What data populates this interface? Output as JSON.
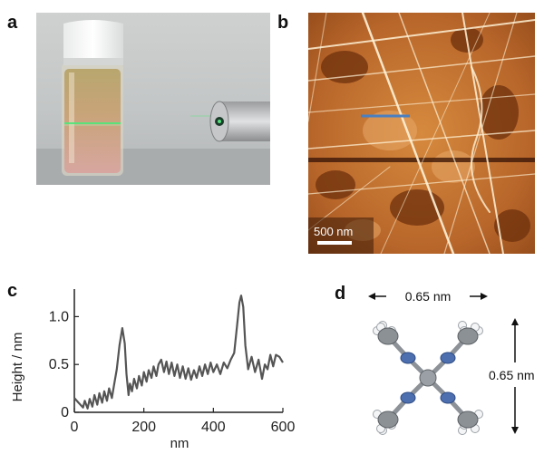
{
  "panels": {
    "a": {
      "letter": "a"
    },
    "b": {
      "letter": "b",
      "scalebar_label": "500 nm",
      "line_color": "#4a7fc0"
    },
    "c": {
      "letter": "c"
    },
    "d": {
      "letter": "d",
      "width_label": "0.65 nm",
      "height_label": "0.65 nm"
    }
  },
  "chart_data": {
    "type": "line",
    "xlabel": "nm",
    "ylabel": "Height / nm",
    "xlim": [
      0,
      600
    ],
    "ylim": [
      0,
      1.25
    ],
    "xticks": [
      0,
      200,
      400,
      600
    ],
    "yticks": [
      0,
      0.5,
      1.0
    ],
    "xtick_labels": [
      "0",
      "200",
      "400",
      "600"
    ],
    "ytick_labels": [
      "0",
      "0.5",
      "1.0"
    ],
    "grid": false,
    "series": [
      {
        "color": "#555555",
        "x": [
          0,
          12,
          25,
          30,
          38,
          44,
          52,
          58,
          66,
          72,
          80,
          86,
          94,
          100,
          108,
          114,
          122,
          130,
          138,
          145,
          150,
          156,
          160,
          166,
          172,
          180,
          186,
          194,
          200,
          208,
          214,
          222,
          228,
          236,
          242,
          250,
          258,
          265,
          272,
          280,
          288,
          296,
          304,
          312,
          320,
          328,
          336,
          344,
          352,
          360,
          368,
          376,
          384,
          392,
          400,
          410,
          420,
          430,
          440,
          450,
          460,
          468,
          475,
          480,
          486,
          492,
          500,
          510,
          520,
          530,
          540,
          548,
          556,
          564,
          572,
          580,
          590,
          600
        ],
        "y": [
          0.15,
          0.1,
          0.05,
          0.12,
          0.04,
          0.14,
          0.06,
          0.18,
          0.08,
          0.2,
          0.1,
          0.22,
          0.12,
          0.25,
          0.15,
          0.28,
          0.45,
          0.7,
          0.88,
          0.72,
          0.4,
          0.18,
          0.3,
          0.22,
          0.35,
          0.25,
          0.38,
          0.28,
          0.42,
          0.32,
          0.44,
          0.36,
          0.48,
          0.38,
          0.5,
          0.55,
          0.42,
          0.53,
          0.4,
          0.52,
          0.38,
          0.5,
          0.36,
          0.48,
          0.35,
          0.46,
          0.34,
          0.44,
          0.36,
          0.48,
          0.38,
          0.5,
          0.4,
          0.52,
          0.42,
          0.5,
          0.4,
          0.52,
          0.46,
          0.55,
          0.62,
          0.9,
          1.15,
          1.22,
          1.1,
          0.7,
          0.45,
          0.58,
          0.42,
          0.55,
          0.35,
          0.5,
          0.45,
          0.6,
          0.48,
          0.6,
          0.58,
          0.52
        ]
      }
    ]
  }
}
